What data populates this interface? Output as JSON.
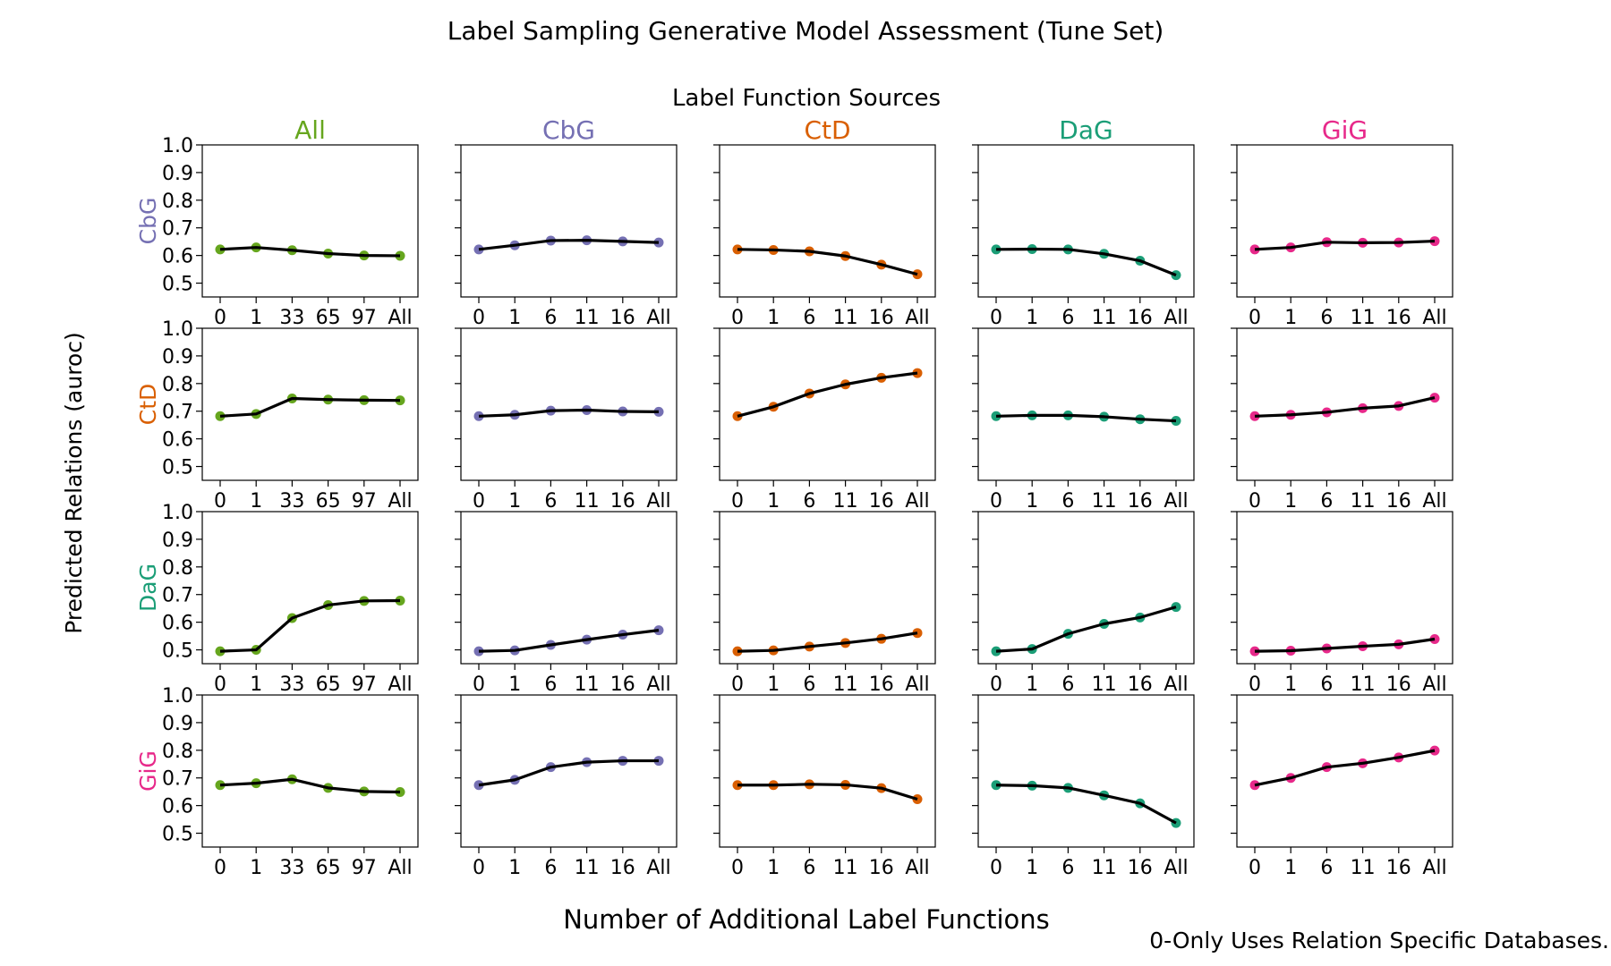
{
  "chart_data": {
    "type": "line",
    "title": "Label Sampling Generative Model Assessment (Tune Set)",
    "column_header": "Label Function Sources",
    "xlabel": "Number of Additional Label Functions",
    "ylabel": "Predicted Relations (auroc)",
    "footnote": "0-Only Uses Relation Specific Databases.",
    "ylim": [
      0.45,
      1.0
    ],
    "yticks": [
      "0.5",
      "0.6",
      "0.7",
      "0.8",
      "0.9",
      "1.0"
    ],
    "grid": false,
    "colors": {
      "All": "#66a61e",
      "CbG": "#7570b3",
      "CtD": "#d95f02",
      "DaG": "#1b9e77",
      "GiG": "#e7298a",
      "line": "#000000"
    },
    "columns": [
      {
        "label": "All",
        "color_key": "All"
      },
      {
        "label": "CbG",
        "color_key": "CbG"
      },
      {
        "label": "CtD",
        "color_key": "CtD"
      },
      {
        "label": "DaG",
        "color_key": "DaG"
      },
      {
        "label": "GiG",
        "color_key": "GiG"
      }
    ],
    "rows": [
      {
        "label": "CbG",
        "color_key": "CbG"
      },
      {
        "label": "CtD",
        "color_key": "CtD"
      },
      {
        "label": "DaG",
        "color_key": "DaG"
      },
      {
        "label": "GiG",
        "color_key": "GiG"
      }
    ],
    "x_categories": [
      [
        "0",
        "1",
        "33",
        "65",
        "97",
        "All"
      ],
      [
        "0",
        "1",
        "6",
        "11",
        "16",
        "All"
      ],
      [
        "0",
        "1",
        "6",
        "11",
        "16",
        "All"
      ],
      [
        "0",
        "1",
        "6",
        "11",
        "16",
        "All"
      ],
      [
        "0",
        "1",
        "6",
        "11",
        "16",
        "All"
      ]
    ],
    "values": [
      [
        [
          0.622,
          0.629,
          0.619,
          0.607,
          0.6,
          0.599
        ],
        [
          0.622,
          0.637,
          0.654,
          0.655,
          0.651,
          0.647
        ],
        [
          0.622,
          0.62,
          0.615,
          0.598,
          0.567,
          0.532
        ],
        [
          0.622,
          0.623,
          0.622,
          0.606,
          0.581,
          0.529
        ],
        [
          0.622,
          0.629,
          0.648,
          0.646,
          0.647,
          0.652
        ]
      ],
      [
        [
          0.682,
          0.69,
          0.746,
          0.742,
          0.74,
          0.739
        ],
        [
          0.682,
          0.687,
          0.702,
          0.704,
          0.699,
          0.698
        ],
        [
          0.682,
          0.716,
          0.764,
          0.797,
          0.821,
          0.838
        ],
        [
          0.682,
          0.685,
          0.685,
          0.68,
          0.671,
          0.665
        ],
        [
          0.682,
          0.687,
          0.696,
          0.711,
          0.719,
          0.749
        ]
      ],
      [
        [
          0.495,
          0.5,
          0.615,
          0.662,
          0.677,
          0.678
        ],
        [
          0.495,
          0.498,
          0.518,
          0.537,
          0.555,
          0.571
        ],
        [
          0.495,
          0.498,
          0.512,
          0.525,
          0.54,
          0.561
        ],
        [
          0.495,
          0.503,
          0.558,
          0.594,
          0.617,
          0.655
        ],
        [
          0.495,
          0.497,
          0.505,
          0.513,
          0.52,
          0.539
        ]
      ],
      [
        [
          0.674,
          0.681,
          0.695,
          0.664,
          0.651,
          0.649
        ],
        [
          0.674,
          0.693,
          0.739,
          0.757,
          0.762,
          0.762
        ],
        [
          0.674,
          0.674,
          0.677,
          0.675,
          0.663,
          0.623
        ],
        [
          0.674,
          0.672,
          0.664,
          0.637,
          0.608,
          0.537
        ],
        [
          0.674,
          0.7,
          0.739,
          0.753,
          0.774,
          0.799
        ]
      ]
    ]
  }
}
